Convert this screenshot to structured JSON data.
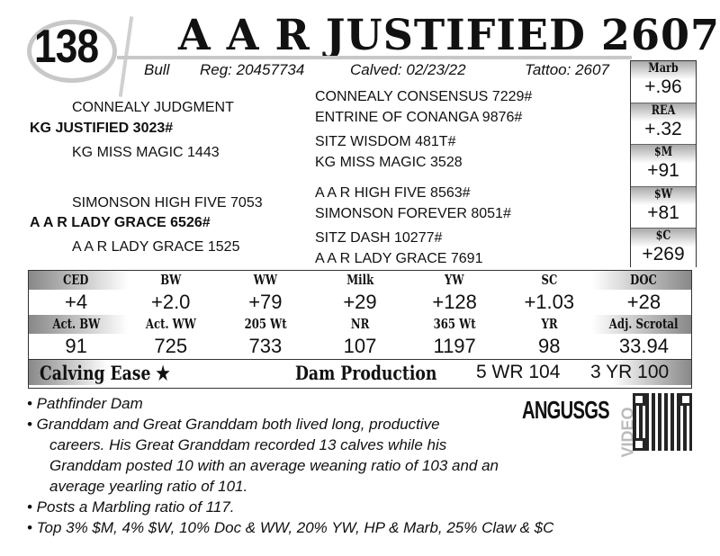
{
  "lot": {
    "number": "138"
  },
  "title": "A A R JUSTIFIED 2607",
  "info": {
    "sex": "Bull",
    "reg": "Reg: 20457734",
    "calved": "Calved: 02/23/22",
    "tattoo": "Tattoo: 2607"
  },
  "pedigree": {
    "sire": "KG JUSTIFIED 3023#",
    "sire_sire": "CONNEALY JUDGMENT",
    "sire_dam": "KG MISS MAGIC 1443",
    "ss_sire": "CONNEALY CONSENSUS 7229#",
    "ss_dam": "ENTRINE OF CONANGA 9876#",
    "sd_sire": "SITZ WISDOM 481T#",
    "sd_dam": "KG MISS MAGIC 3528",
    "dam": "A A R LADY GRACE 6526#",
    "dam_sire": "SIMONSON  HIGH FIVE 7053",
    "dam_dam": "A A R LADY GRACE 1525",
    "ds_sire": "A A R HIGH FIVE 8563#",
    "ds_dam": "SIMONSON FOREVER 8051#",
    "dd_sire": "SITZ DASH 10277#",
    "dd_dam": "A A R LADY GRACE 7691"
  },
  "side_epds": [
    {
      "label": "Marb",
      "value": "+.96"
    },
    {
      "label": "REA",
      "value": "+.32"
    },
    {
      "label": "$M",
      "value": "+91"
    },
    {
      "label": "$W",
      "value": "+81"
    },
    {
      "label": "$C",
      "value": "+269"
    }
  ],
  "epds": [
    {
      "label": "CED",
      "value": "+4"
    },
    {
      "label": "BW",
      "value": "+2.0"
    },
    {
      "label": "WW",
      "value": "+79"
    },
    {
      "label": "Milk",
      "value": "+29"
    },
    {
      "label": "YW",
      "value": "+128"
    },
    {
      "label": "SC",
      "value": "+1.03"
    },
    {
      "label": "DOC",
      "value": "+28"
    }
  ],
  "actuals": [
    {
      "label": "Act. BW",
      "value": "91"
    },
    {
      "label": "Act. WW",
      "value": "725"
    },
    {
      "label": "205 Wt",
      "value": "733"
    },
    {
      "label": "NR",
      "value": "107"
    },
    {
      "label": "365 Wt",
      "value": "1197"
    },
    {
      "label": "YR",
      "value": "98"
    },
    {
      "label": "Adj. Scrotal",
      "value": "33.94"
    }
  ],
  "bottom": {
    "calving_ease": "Calving Ease ★",
    "dam_production": "Dam Production",
    "wr": "5 WR 104",
    "yr": "3 YR 100"
  },
  "logo": {
    "text": "ANGUSGS",
    "video": "VIDEO"
  },
  "notes": [
    "• Pathfinder Dam",
    "• Granddam and Great Granddam both lived long, productive",
    "careers. His Great Granddam recorded 13 calves while his",
    "Granddam posted 10 with an average weaning ratio of 103 and an",
    "average yearling ratio of 101.",
    "• Posts a Marbling ratio of 117.",
    "• Top 3% $M, 4% $W, 10% Doc & WW, 20% YW, HP & Marb, 25% Claw & $C"
  ]
}
